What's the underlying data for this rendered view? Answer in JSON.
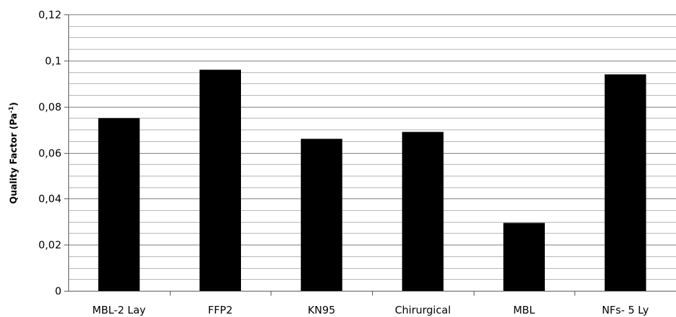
{
  "chart_data": {
    "type": "bar",
    "categories": [
      "MBL-2 Lay",
      "FFP2",
      "KN95",
      "Chirurgical",
      "MBL",
      "NFs- 5 Ly"
    ],
    "values": [
      0.075,
      0.096,
      0.066,
      0.069,
      0.0295,
      0.094
    ],
    "ylim": [
      0,
      0.12
    ],
    "yticks": [
      "0",
      "0,02",
      "0,04",
      "0,06",
      "0,08",
      "0,1",
      "0,12"
    ],
    "ylabel": {
      "main": "Quality Factor (Pa",
      "sup": "-1",
      "close": ")"
    },
    "xlabel": "",
    "title": "",
    "minor_grid_step": 0.005,
    "grid": true,
    "legend": "none",
    "colors": {
      "bar": "#000000",
      "major_grid": "#7f7f7f",
      "minor_grid": "#b5b5b5",
      "axis": "#555555"
    }
  }
}
